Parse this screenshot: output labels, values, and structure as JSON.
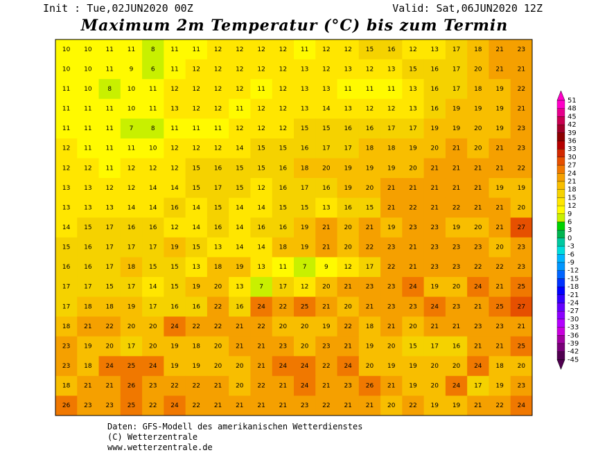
{
  "header": {
    "init": "Init : Tue,02JUN2020 00Z",
    "valid": "Valid: Sat,06JUN2020 12Z",
    "title": "Maximum 2m Temperatur (°C) bis zum Termin"
  },
  "map": {
    "rows": [
      [
        10,
        10,
        11,
        11,
        8,
        11,
        11,
        12,
        12,
        12,
        12,
        11,
        12,
        12,
        15,
        16,
        12,
        13,
        17,
        18,
        21,
        23
      ],
      [
        10,
        10,
        11,
        9,
        6,
        11,
        12,
        12,
        12,
        12,
        12,
        13,
        12,
        13,
        12,
        13,
        15,
        16,
        17,
        20,
        21,
        21
      ],
      [
        11,
        10,
        8,
        10,
        11,
        12,
        12,
        12,
        12,
        11,
        12,
        13,
        13,
        11,
        11,
        11,
        13,
        16,
        17,
        18,
        19,
        22
      ],
      [
        11,
        11,
        11,
        10,
        11,
        13,
        12,
        12,
        11,
        12,
        12,
        13,
        14,
        13,
        12,
        12,
        13,
        16,
        19,
        19,
        19,
        21
      ],
      [
        11,
        11,
        11,
        7,
        8,
        11,
        11,
        11,
        12,
        12,
        12,
        15,
        15,
        16,
        16,
        17,
        17,
        19,
        19,
        20,
        19,
        23
      ],
      [
        12,
        11,
        11,
        11,
        10,
        12,
        12,
        12,
        14,
        15,
        15,
        16,
        17,
        17,
        18,
        18,
        19,
        20,
        21,
        20,
        21,
        23
      ],
      [
        12,
        12,
        11,
        12,
        12,
        12,
        15,
        16,
        15,
        15,
        16,
        18,
        20,
        19,
        19,
        19,
        20,
        21,
        21,
        21,
        21,
        22
      ],
      [
        13,
        13,
        12,
        12,
        14,
        14,
        15,
        17,
        15,
        12,
        16,
        17,
        16,
        19,
        20,
        21,
        21,
        21,
        21,
        21,
        19,
        19
      ],
      [
        13,
        13,
        13,
        14,
        14,
        16,
        14,
        15,
        14,
        14,
        15,
        15,
        13,
        16,
        15,
        21,
        22,
        21,
        22,
        21,
        21,
        20
      ],
      [
        14,
        15,
        17,
        16,
        16,
        12,
        14,
        16,
        14,
        16,
        16,
        19,
        21,
        20,
        21,
        19,
        23,
        23,
        19,
        20,
        21,
        27
      ],
      [
        15,
        16,
        17,
        17,
        17,
        19,
        15,
        13,
        14,
        14,
        18,
        19,
        21,
        20,
        22,
        23,
        21,
        23,
        23,
        23,
        20,
        23
      ],
      [
        16,
        16,
        17,
        18,
        15,
        15,
        13,
        18,
        19,
        13,
        11,
        7,
        9,
        12,
        17,
        22,
        21,
        23,
        23,
        22,
        22,
        23
      ],
      [
        17,
        17,
        15,
        17,
        14,
        15,
        19,
        20,
        13,
        7,
        17,
        12,
        20,
        21,
        23,
        23,
        24,
        19,
        20,
        24,
        21,
        25
      ],
      [
        17,
        18,
        18,
        19,
        17,
        16,
        16,
        22,
        16,
        24,
        22,
        25,
        21,
        20,
        21,
        23,
        23,
        24,
        23,
        21,
        25,
        27
      ],
      [
        18,
        21,
        22,
        20,
        20,
        24,
        22,
        22,
        21,
        22,
        20,
        20,
        19,
        22,
        18,
        21,
        20,
        21,
        21,
        23,
        23,
        21
      ],
      [
        23,
        19,
        20,
        17,
        20,
        19,
        18,
        20,
        21,
        21,
        23,
        20,
        23,
        21,
        19,
        20,
        15,
        17,
        16,
        21,
        21,
        25
      ],
      [
        23,
        18,
        24,
        25,
        24,
        19,
        19,
        20,
        20,
        21,
        24,
        24,
        22,
        24,
        20,
        19,
        19,
        20,
        20,
        24,
        18,
        20
      ],
      [
        18,
        21,
        21,
        26,
        23,
        22,
        22,
        21,
        20,
        22,
        21,
        24,
        21,
        23,
        26,
        21,
        19,
        20,
        24,
        17,
        19,
        23
      ],
      [
        26,
        23,
        23,
        25,
        22,
        24,
        22,
        21,
        21,
        21,
        21,
        23,
        22,
        21,
        21,
        20,
        22,
        19,
        19,
        21,
        22,
        24
      ]
    ]
  },
  "legend": {
    "labels": [
      51,
      48,
      45,
      42,
      39,
      36,
      33,
      30,
      27,
      24,
      21,
      18,
      15,
      12,
      9,
      6,
      3,
      0,
      -3,
      -6,
      -9,
      -12,
      -15,
      -18,
      -21,
      -24,
      -27,
      -30,
      -33,
      -36,
      -39,
      -42,
      -45
    ],
    "colors": [
      "#ff00c8",
      "#e6008c",
      "#c80050",
      "#a00028",
      "#8c0000",
      "#b40000",
      "#d22800",
      "#e65000",
      "#f07800",
      "#f5a000",
      "#f8be00",
      "#f5d200",
      "#ffe600",
      "#fffa00",
      "#c8f000",
      "#00d200",
      "#00b450",
      "#00c8a0",
      "#00dcdc",
      "#00b4ff",
      "#0096ff",
      "#0064ff",
      "#0032ff",
      "#0000ff",
      "#3200ff",
      "#6400ff",
      "#8c00ff",
      "#b400ff",
      "#c800dc",
      "#a000a0",
      "#780078",
      "#500050"
    ]
  },
  "footer": [
    "Daten: GFS-Modell des amerikanischen Wetterdienstes",
    "(C) Wetterzentrale",
    "www.wetterzentrale.de"
  ]
}
